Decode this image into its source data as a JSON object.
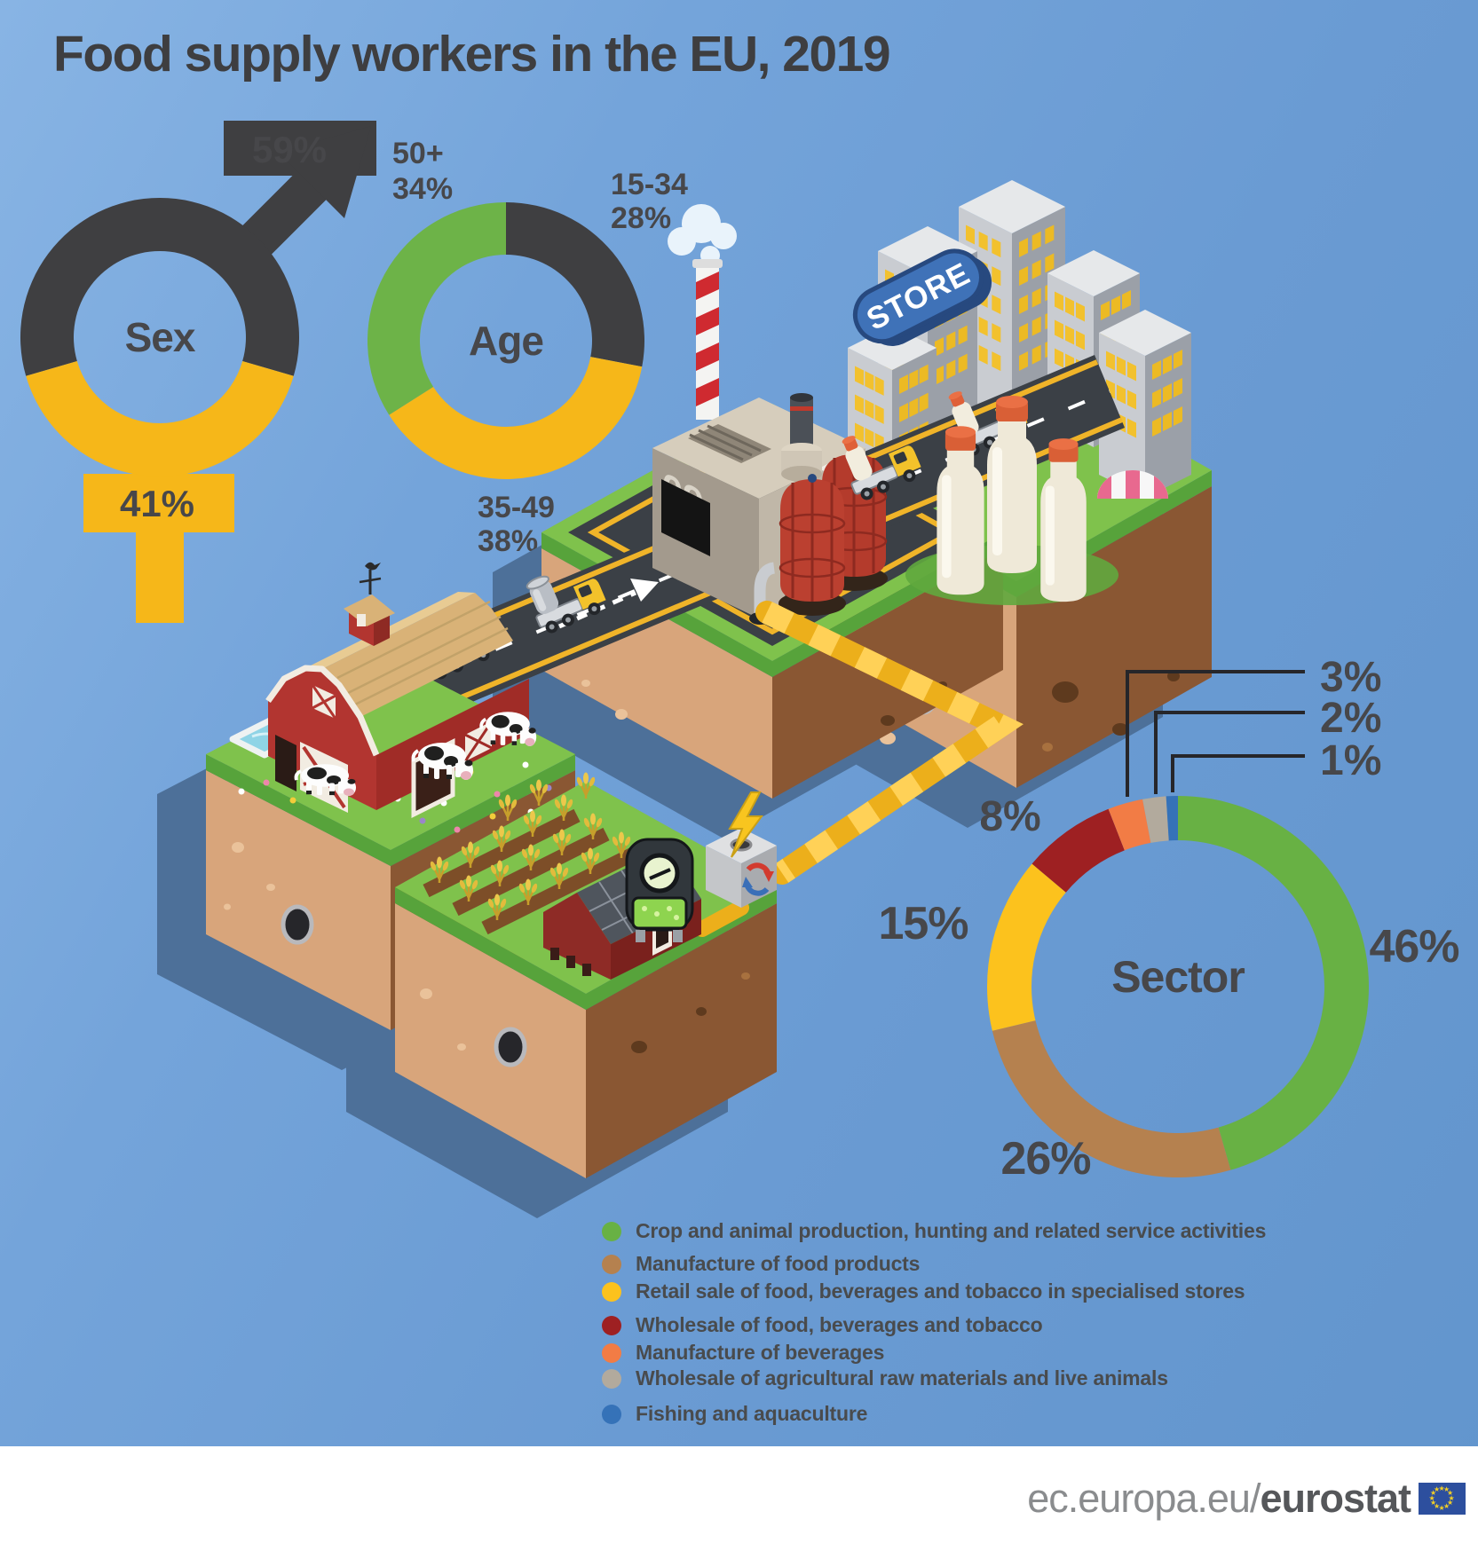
{
  "title": "Food supply workers in the EU, 2019",
  "chart_data": [
    {
      "type": "pie",
      "variant": "donut",
      "id": "sex",
      "title": "Sex",
      "note": "shares shown on combined male/female symbol",
      "segments": [
        {
          "label": "Men",
          "value": 59,
          "display": "59%",
          "color": "#3f3f41"
        },
        {
          "label": "Women",
          "value": 41,
          "display": "41%",
          "color": "#f6b719"
        }
      ]
    },
    {
      "type": "pie",
      "variant": "donut",
      "id": "age",
      "title": "Age",
      "segments": [
        {
          "label": "15-34",
          "value": 28,
          "display": "28%",
          "color": "#3f3f41"
        },
        {
          "label": "35-49",
          "value": 38,
          "display": "38%",
          "color": "#f6b719"
        },
        {
          "label": "50+",
          "value": 34,
          "display": "34%",
          "color": "#6db348"
        }
      ]
    },
    {
      "type": "pie",
      "variant": "donut",
      "id": "sector",
      "title": "Sector",
      "segments": [
        {
          "label": "Crop and animal production, hunting and related service activities",
          "value": 46,
          "display": "46%",
          "color": "#68b144"
        },
        {
          "label": "Manufacture of food products",
          "value": 26,
          "display": "26%",
          "color": "#b5814f"
        },
        {
          "label": "Retail sale of food, beverages and tobacco in specialised stores",
          "value": 15,
          "display": "15%",
          "color": "#fcc21d"
        },
        {
          "label": "Wholesale of food, beverages and tobacco",
          "value": 8,
          "display": "8%",
          "color": "#9e2022"
        },
        {
          "label": "Manufacture of beverages",
          "value": 3,
          "display": "3%",
          "color": "#f27c45"
        },
        {
          "label": "Wholesale of agricultural raw materials and live animals",
          "value": 2,
          "display": "2%",
          "color": "#b2aa9d"
        },
        {
          "label": "Fishing and aquaculture",
          "value": 1,
          "display": "1%",
          "color": "#3572b8"
        }
      ]
    }
  ],
  "illustration": {
    "store_sign": "STORE",
    "factory_number": "09"
  },
  "footer": {
    "url_prefix": "ec.europa.eu/",
    "url_bold": "eurostat"
  },
  "colors": {
    "background": "#6d9ed6",
    "accent_yellow": "#f6b719",
    "dark": "#3f3f41",
    "label_text": "#47474a",
    "block_shadow": "#4d7099",
    "grass": "#7fc24c",
    "soil_light": "#d8a57b",
    "soil_dark": "#8a5733",
    "road": "#3b4046",
    "road_line": "#f0b429"
  }
}
